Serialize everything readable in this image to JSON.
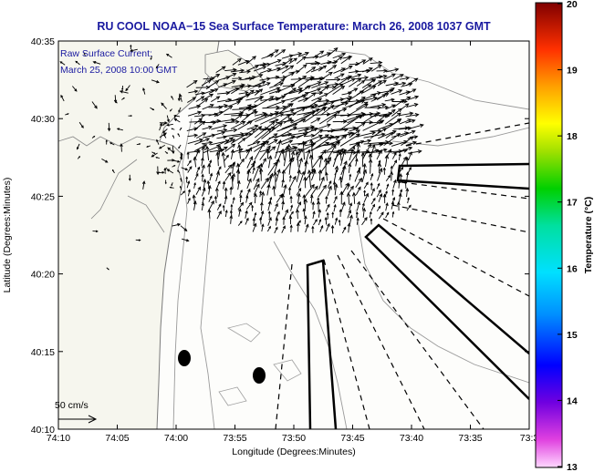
{
  "title": "RU COOL  NOAA−15  Sea Surface Temperature:  March 26, 2008 1037 GMT",
  "legend_line1": "Raw Surface Current:",
  "legend_line2": "March 25, 2008 10:00 GMT",
  "scale_label": "50 cm/s",
  "chart_data": {
    "type": "map",
    "xlabel": "Longitude (Degrees:Minutes)",
    "ylabel": "Latitude (Degrees:Minutes)",
    "x_ticks": [
      "74:10",
      "74:05",
      "74:00",
      "73:55",
      "73:50",
      "73:45",
      "73:40",
      "73:35",
      "73:3"
    ],
    "y_ticks": [
      "40:35",
      "40:30",
      "40:25",
      "40:20",
      "40:15",
      "40:10"
    ],
    "colorbar": {
      "label": "Temperature (°C)",
      "ticks": [
        "20",
        "19",
        "18",
        "17",
        "16",
        "15",
        "14",
        "13"
      ],
      "range": [
        13,
        20
      ]
    },
    "colors": {
      "title": "#1a1aa0",
      "coast": "#777777",
      "arrow": "#000000"
    }
  }
}
